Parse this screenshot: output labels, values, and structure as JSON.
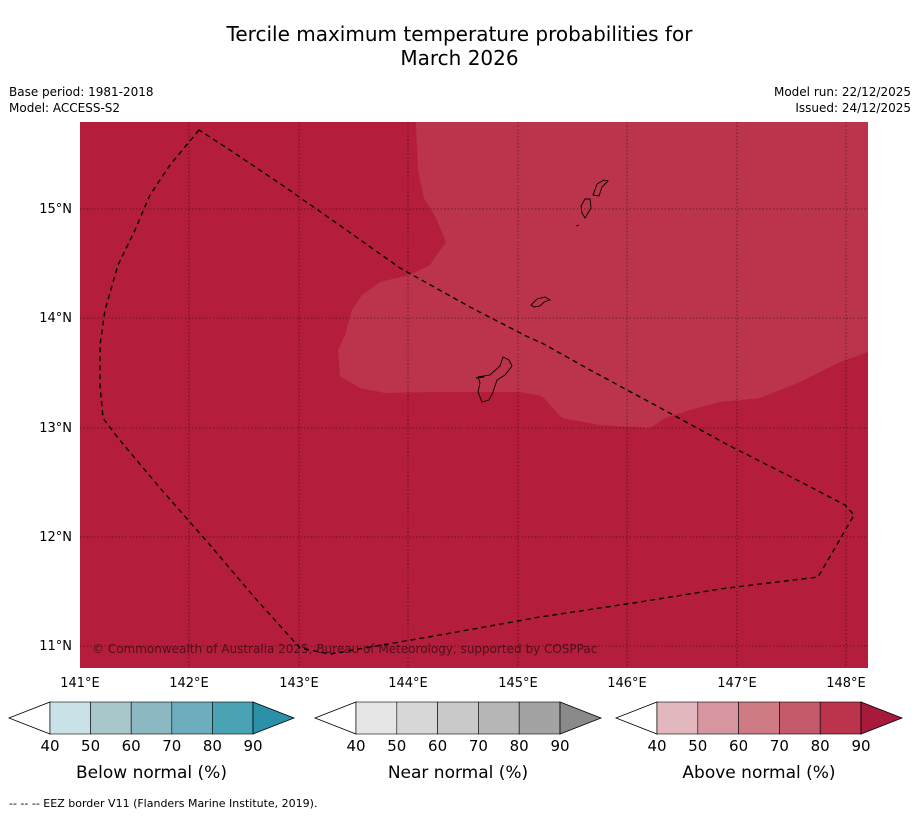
{
  "title": {
    "line1": "Tercile maximum temperature probabilities for",
    "line2": "March 2026"
  },
  "meta": {
    "base_period": "Base period: 1981-2018",
    "model": "Model: ACCESS-S2",
    "model_run": "Model run: 22/12/2025",
    "issued": "Issued: 24/12/2025"
  },
  "map": {
    "lat_labels": [
      "15°N",
      "14°N",
      "13°N",
      "12°N",
      "11°N"
    ],
    "lon_labels": [
      "141°E",
      "142°E",
      "143°E",
      "144°E",
      "145°E",
      "146°E",
      "147°E",
      "148°E"
    ],
    "copyright": "© Commonwealth of Australia 2025, Bureau of Meteorology, supported by COSPPac",
    "colors": {
      "above_80_90": "#b41e3c",
      "above_70_80": "#bc344c",
      "coast": "#000000",
      "grid": "#000000"
    }
  },
  "colorbars": [
    {
      "label": "Below normal (%)",
      "ticks": [
        "40",
        "50",
        "60",
        "70",
        "80",
        "90"
      ],
      "colors": [
        "#ffffff",
        "#c9e2e8",
        "#a7c7cb",
        "#8bb8c3",
        "#6eadbd",
        "#49a3b5",
        "#2a91a8"
      ]
    },
    {
      "label": "Near normal (%)",
      "ticks": [
        "40",
        "50",
        "60",
        "70",
        "80",
        "90"
      ],
      "colors": [
        "#ffffff",
        "#e6e6e6",
        "#d7d7d7",
        "#c9c9c9",
        "#b6b6b6",
        "#a3a3a3",
        "#8a8a8a"
      ]
    },
    {
      "label": "Above normal (%)",
      "ticks": [
        "40",
        "50",
        "60",
        "70",
        "80",
        "90"
      ],
      "colors": [
        "#ffffff",
        "#e2b8be",
        "#d6969f",
        "#cf7b84",
        "#c45a6a",
        "#bc344c",
        "#a81a3c"
      ]
    }
  ],
  "footer": "--  --  -- EEZ border V11 (Flanders Marine Institute, 2019)."
}
